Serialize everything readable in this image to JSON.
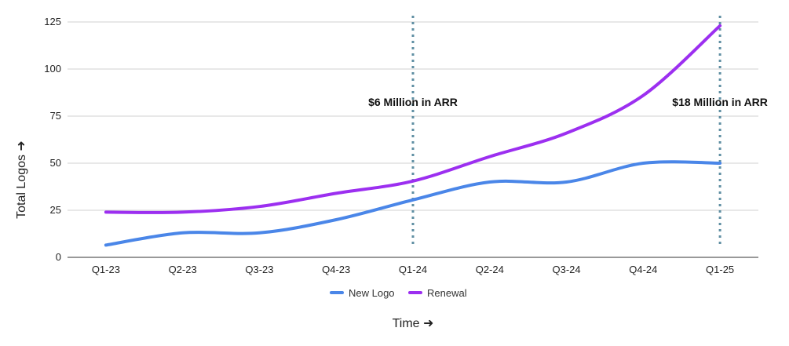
{
  "chart_data": {
    "type": "line",
    "title": "",
    "xlabel": "Time ➜",
    "ylabel": "Total Logos ➜",
    "categories": [
      "Q1-23",
      "Q2-23",
      "Q3-23",
      "Q4-23",
      "Q1-24",
      "Q2-24",
      "Q3-24",
      "Q4-24",
      "Q1-25"
    ],
    "yticks": [
      "0",
      "25",
      "50",
      "75",
      "100",
      "125"
    ],
    "ylim": [
      0,
      125
    ],
    "grid": true,
    "legend_position": "bottom",
    "series": [
      {
        "name": "New Logo",
        "color": "#4a86e8",
        "values": [
          6.5,
          13,
          13,
          20,
          30.5,
          40,
          40,
          50,
          50
        ]
      },
      {
        "name": "Renewal",
        "color": "#9c2ff0",
        "values": [
          24,
          24,
          27,
          34,
          40.5,
          53.5,
          66,
          86,
          123
        ]
      }
    ],
    "annotations": [
      {
        "category": "Q1-24",
        "text": "$6 Million in ARR"
      },
      {
        "category": "Q1-25",
        "text": "$18 Million in ARR"
      }
    ],
    "annotation_line_color": "#5f8fa3"
  }
}
